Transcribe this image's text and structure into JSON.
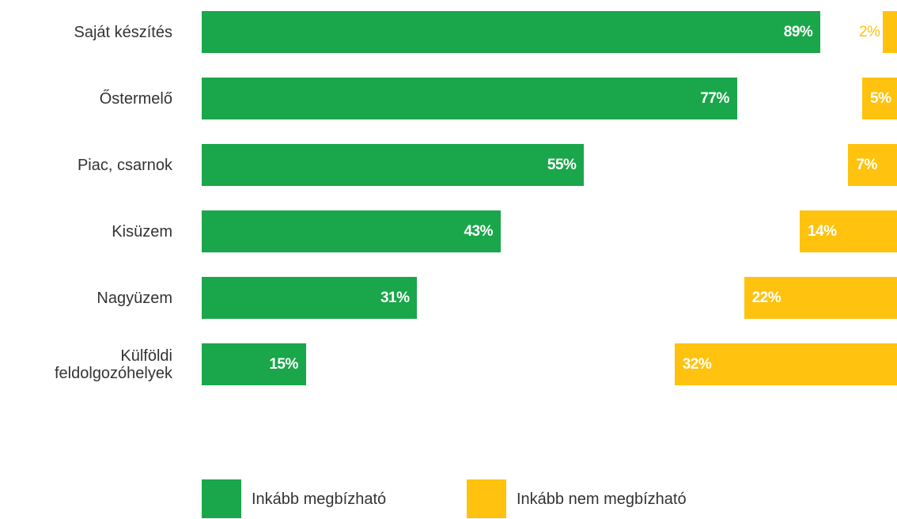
{
  "chart_data": {
    "type": "bar",
    "orientation": "horizontal",
    "categories": [
      "Saját készítés",
      "Őstermelő",
      "Piac, csarnok",
      "Kisüzem",
      "Nagyüzem",
      "Külföldi feldolgozóhelyek"
    ],
    "xlim": [
      0,
      100
    ],
    "series": [
      {
        "name": "Inkább megbízható",
        "color": "#1aa64a",
        "anchor": "left",
        "values": [
          89,
          77,
          55,
          43,
          31,
          15
        ],
        "value_labels": [
          "89%",
          "77%",
          "55%",
          "43%",
          "31%",
          "15%"
        ]
      },
      {
        "name": "Inkább nem megbízható",
        "color": "#ffc20e",
        "anchor": "right",
        "values": [
          2,
          5,
          7,
          14,
          22,
          32
        ],
        "value_labels": [
          "2%",
          "5%",
          "7%",
          "14%",
          "22%",
          "32%"
        ]
      }
    ],
    "legend": "bottom"
  }
}
